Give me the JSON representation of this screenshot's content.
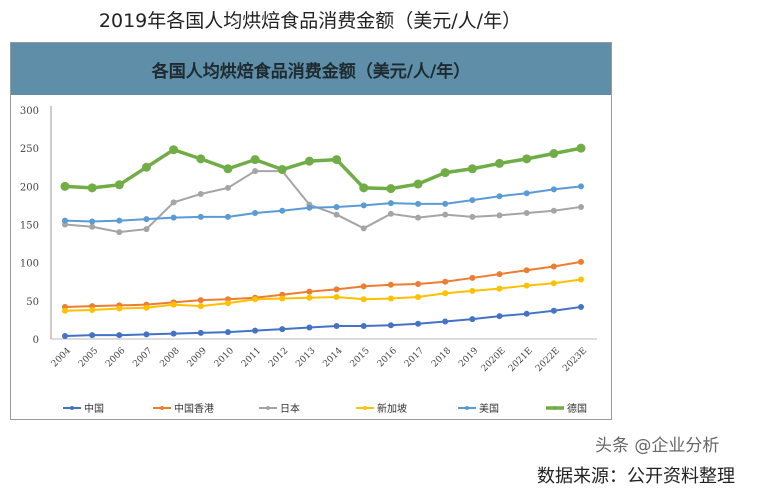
{
  "page_title": "2019年各国人均烘焙食品消费金额（美元/人/年）",
  "source_note": "数据来源：公开资料整理",
  "watermark": "头条 @企业分析",
  "chart_data": {
    "type": "line",
    "title": "各国人均烘焙食品消费金额（美元/人/年）",
    "categories": [
      "2004",
      "2005",
      "2006",
      "2007",
      "2008",
      "2009",
      "2010",
      "2011",
      "2012",
      "2013",
      "2014",
      "2015",
      "2016",
      "2017",
      "2018",
      "2019",
      "2020E",
      "2021E",
      "2022E",
      "2023E"
    ],
    "yticks": [
      0,
      50,
      100,
      150,
      200,
      250,
      300
    ],
    "ylim": [
      0,
      300
    ],
    "grid": false,
    "legend_position": "bottom",
    "series": [
      {
        "name": "中国",
        "color": "#4472c4",
        "values": [
          4,
          5,
          5,
          6,
          7,
          8,
          9,
          11,
          13,
          15,
          17,
          17,
          18,
          20,
          23,
          26,
          30,
          33,
          37,
          42
        ]
      },
      {
        "name": "中国香港",
        "color": "#ed7d31",
        "values": [
          42,
          43,
          44,
          45,
          48,
          51,
          52,
          54,
          58,
          62,
          65,
          69,
          71,
          72,
          75,
          80,
          85,
          90,
          95,
          101
        ]
      },
      {
        "name": "日本",
        "color": "#a5a5a5",
        "values": [
          150,
          147,
          140,
          144,
          179,
          190,
          198,
          220,
          220,
          176,
          163,
          145,
          164,
          159,
          163,
          160,
          162,
          165,
          168,
          173
        ]
      },
      {
        "name": "新加坡",
        "color": "#ffc000",
        "values": [
          37,
          38,
          40,
          41,
          45,
          43,
          47,
          52,
          53,
          54,
          55,
          52,
          53,
          55,
          60,
          63,
          66,
          70,
          73,
          78
        ]
      },
      {
        "name": "美国",
        "color": "#5b9bd5",
        "values": [
          155,
          154,
          155,
          157,
          159,
          160,
          160,
          165,
          168,
          172,
          173,
          175,
          178,
          177,
          177,
          182,
          187,
          191,
          196,
          200
        ]
      },
      {
        "name": "德国",
        "color": "#70ad47",
        "values": [
          200,
          198,
          202,
          225,
          248,
          236,
          223,
          235,
          222,
          233,
          235,
          198,
          197,
          203,
          218,
          223,
          230,
          236,
          243,
          250
        ]
      }
    ]
  }
}
